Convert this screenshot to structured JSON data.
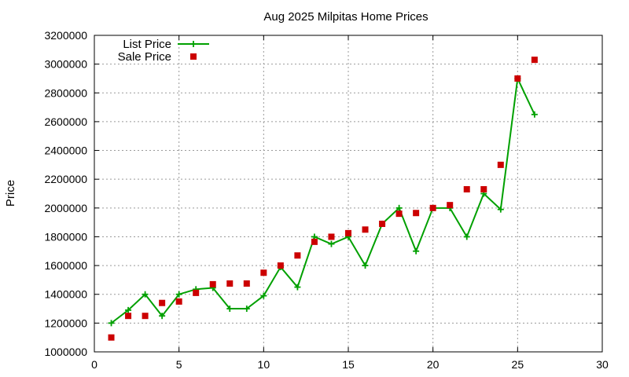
{
  "chart_data": {
    "type": "line",
    "title": "Aug 2025 Milpitas Home Prices",
    "xlabel": "",
    "ylabel": "Price",
    "xlim": [
      0,
      30
    ],
    "ylim": [
      1000000,
      3200000
    ],
    "xticks": [
      0,
      5,
      10,
      15,
      20,
      25,
      30
    ],
    "yticks": [
      1000000,
      1200000,
      1400000,
      1600000,
      1800000,
      2000000,
      2200000,
      2400000,
      2600000,
      2800000,
      3000000,
      3200000
    ],
    "grid": true,
    "legend_position": "top-left",
    "series": [
      {
        "name": "List Price",
        "style": "line-plus",
        "color": "#00a000",
        "x": [
          1,
          2,
          3,
          4,
          5,
          6,
          7,
          8,
          9,
          10,
          11,
          12,
          13,
          14,
          15,
          16,
          17,
          18,
          19,
          20,
          21,
          22,
          23,
          24,
          25,
          26
        ],
        "values": [
          1200000,
          1290000,
          1400000,
          1250000,
          1400000,
          1435000,
          1445000,
          1300000,
          1300000,
          1390000,
          1590000,
          1450000,
          1800000,
          1750000,
          1800000,
          1600000,
          1890000,
          2000000,
          1700000,
          2000000,
          2000000,
          1800000,
          2100000,
          1990000,
          2900000,
          2650000
        ]
      },
      {
        "name": "Sale Price",
        "style": "square-points",
        "color": "#cc0000",
        "x": [
          1,
          2,
          3,
          4,
          5,
          6,
          7,
          8,
          9,
          10,
          11,
          12,
          13,
          14,
          15,
          16,
          17,
          18,
          19,
          20,
          21,
          22,
          23,
          24,
          25,
          26
        ],
        "values": [
          1100000,
          1250000,
          1250000,
          1340000,
          1350000,
          1410000,
          1470000,
          1475000,
          1475000,
          1550000,
          1600000,
          1670000,
          1765000,
          1800000,
          1825000,
          1850000,
          1890000,
          1960000,
          1965000,
          2000000,
          2020000,
          2130000,
          2130000,
          2300000,
          2900000,
          3030000
        ]
      }
    ]
  }
}
